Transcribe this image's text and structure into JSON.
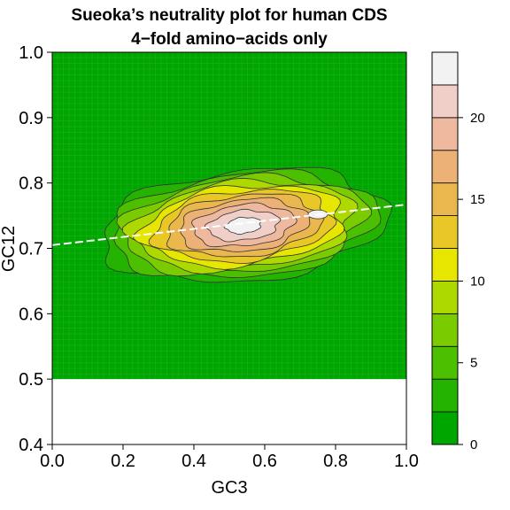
{
  "chart_data": {
    "type": "heatmap",
    "title": "Sueoka’s neutrality plot for human CDS",
    "subtitle": "4−fold amino−acids only",
    "xlabel": "GC3",
    "ylabel": "GC12",
    "xlim": [
      0.0,
      1.0
    ],
    "ylim": [
      0.4,
      1.0
    ],
    "x_ticks": [
      0.0,
      0.2,
      0.4,
      0.6,
      0.8,
      1.0
    ],
    "x_tick_labels": [
      "0.0",
      "0.2",
      "0.4",
      "0.6",
      "0.8",
      "1.0"
    ],
    "y_ticks": [
      0.4,
      0.5,
      0.6,
      0.7,
      0.8,
      0.9,
      1.0
    ],
    "y_tick_labels": [
      "0.4",
      "0.5",
      "0.6",
      "0.7",
      "0.8",
      "0.9",
      "1.0"
    ],
    "data_region": {
      "x": [
        0.0,
        1.0
      ],
      "y": [
        0.5,
        1.0
      ]
    },
    "density_peak": {
      "x": 0.75,
      "y": 0.752
    },
    "regression_line": {
      "intercept": 0.705,
      "slope": 0.062
    },
    "colorbar": {
      "levels": [
        0,
        2,
        4,
        6,
        8,
        10,
        12,
        14,
        16,
        18,
        20,
        22,
        24
      ],
      "tick_values": [
        0,
        5,
        10,
        15,
        20
      ],
      "tick_labels": [
        "0",
        "5",
        "10",
        "15",
        "20"
      ],
      "colors": [
        "#00A600",
        "#24B300",
        "#4CC000",
        "#7ACC00",
        "#ADD900",
        "#E6E600",
        "#E8C727",
        "#EAB64E",
        "#ECB176",
        "#EEB99F",
        "#F0CFC8",
        "#F2F2F2"
      ]
    }
  }
}
